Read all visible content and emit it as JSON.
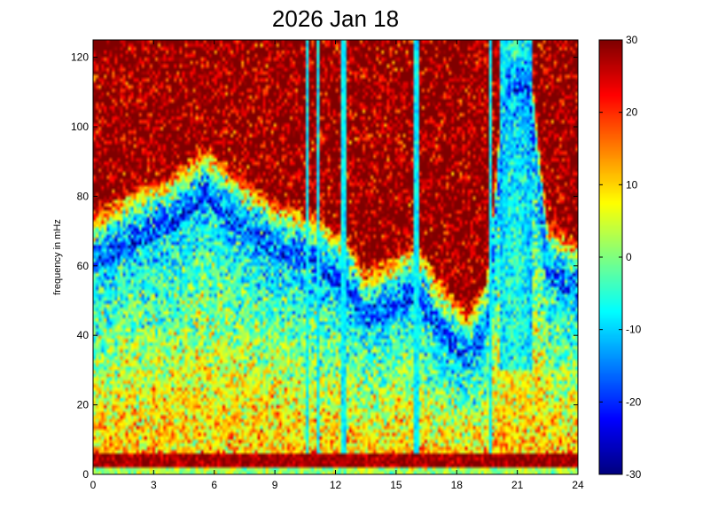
{
  "chart_data": {
    "type": "heatmap",
    "title": "2026 Jan 18",
    "xlabel": "",
    "ylabel": "frequency in mHz",
    "x_range": [
      0,
      24
    ],
    "y_range": [
      0,
      125
    ],
    "x_ticks": [
      0,
      3,
      6,
      9,
      12,
      15,
      18,
      21,
      24
    ],
    "y_ticks": [
      0,
      20,
      40,
      60,
      80,
      100,
      120
    ],
    "colormap": "jet",
    "color_range": [
      -30,
      30
    ],
    "colorbar_ticks": [
      -30,
      -20,
      -10,
      0,
      10,
      20,
      30
    ],
    "colorbar_position": "right",
    "grid": false,
    "features": {
      "lf_band_mhz": [
        2,
        6
      ],
      "lf_band_level": 28,
      "low_level_ridge_mhz_by_hour": [
        [
          0,
          58
        ],
        [
          2,
          65
        ],
        [
          4,
          70
        ],
        [
          5.5,
          78
        ],
        [
          7,
          70
        ],
        [
          9,
          62
        ],
        [
          11,
          58
        ],
        [
          12.5,
          52
        ],
        [
          13.5,
          42
        ],
        [
          15,
          46
        ],
        [
          16,
          50
        ],
        [
          17,
          40
        ],
        [
          18.5,
          30
        ],
        [
          19.5,
          40
        ],
        [
          20.5,
          110
        ],
        [
          21.5,
          110
        ],
        [
          22.5,
          55
        ],
        [
          24,
          50
        ]
      ],
      "saturated_background_level": 30,
      "vertical_lines_hour": [
        10.6,
        11.1,
        12.4,
        16.0,
        19.7
      ],
      "burst_interval_hour": [
        20.1,
        21.7
      ]
    }
  }
}
